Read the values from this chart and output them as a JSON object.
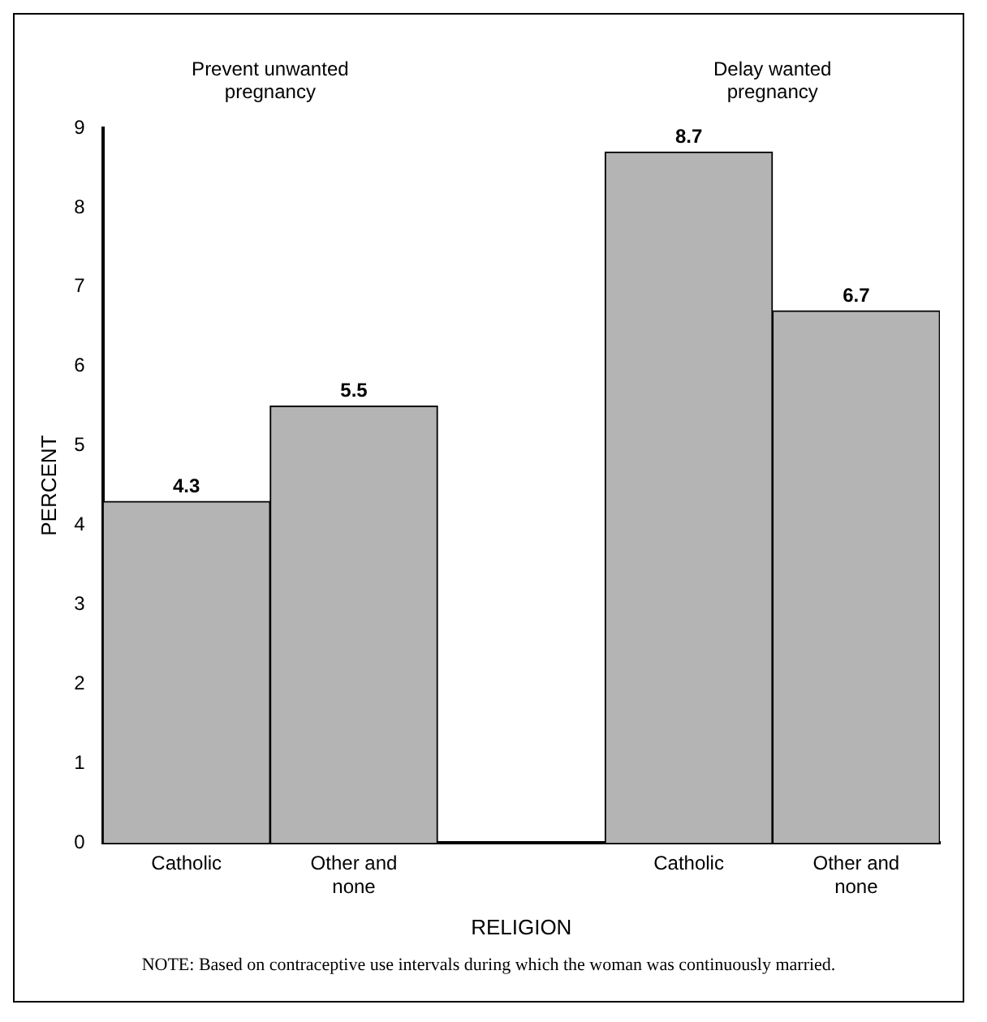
{
  "chart_data": {
    "type": "bar",
    "xlabel": "RELIGION",
    "ylabel": "PERCENT",
    "categories": [
      "Catholic",
      "Other and none",
      null,
      "Catholic",
      "Other and none"
    ],
    "values": [
      4.3,
      5.5,
      null,
      8.7,
      6.7
    ],
    "color": "#b4b4b4",
    "ylim": [
      0,
      9
    ],
    "yticks": [
      0,
      1,
      2,
      3,
      4,
      5,
      6,
      7,
      8,
      9
    ],
    "grid": false,
    "legend": false,
    "data_labels": true,
    "annotations": [
      "Prevent unwanted pregnancy",
      "Delay wanted pregnancy",
      "NOTE: Based on contraceptive use intervals during which the woman was continuously married."
    ]
  }
}
